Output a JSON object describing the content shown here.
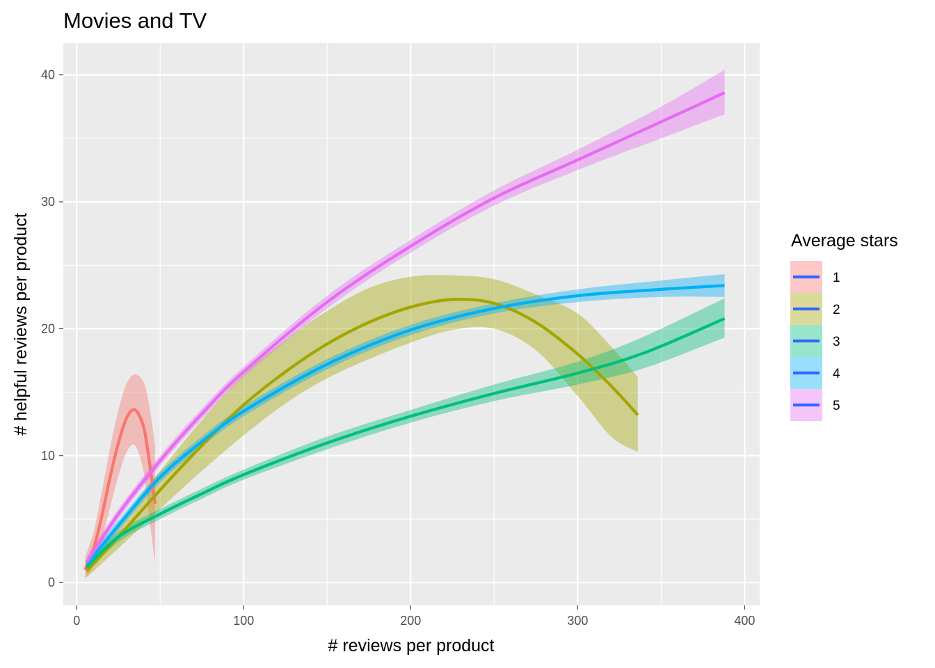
{
  "chart_data": {
    "type": "line",
    "title": "Movies and TV",
    "xlabel": "# reviews per product",
    "ylabel": "# helpful reviews per product",
    "xlim": [
      -8,
      409
    ],
    "ylim": [
      -1.8,
      42.5
    ],
    "x_ticks": [
      0,
      100,
      200,
      300,
      400
    ],
    "y_ticks": [
      0,
      10,
      20,
      30,
      40
    ],
    "grid": true,
    "legend": {
      "title": "Average stars",
      "placement": "right",
      "items": [
        "1",
        "2",
        "3",
        "4",
        "5"
      ]
    },
    "series": [
      {
        "name": "1",
        "color": "#F8766D",
        "points": [
          {
            "x": 5,
            "y": 1.0,
            "lo": 0.3,
            "hi": 2.0
          },
          {
            "x": 10,
            "y": 2.6,
            "lo": 1.3,
            "hi": 3.9
          },
          {
            "x": 15,
            "y": 5.2,
            "lo": 3.3,
            "hi": 7.1
          },
          {
            "x": 20,
            "y": 8.3,
            "lo": 5.9,
            "hi": 10.6
          },
          {
            "x": 25,
            "y": 11.0,
            "lo": 8.4,
            "hi": 13.6
          },
          {
            "x": 30,
            "y": 13.0,
            "lo": 10.3,
            "hi": 15.7
          },
          {
            "x": 35,
            "y": 13.6,
            "lo": 10.8,
            "hi": 16.4
          },
          {
            "x": 40,
            "y": 12.3,
            "lo": 8.8,
            "hi": 15.8
          },
          {
            "x": 43,
            "y": 10.0,
            "lo": 5.6,
            "hi": 14.3
          },
          {
            "x": 47,
            "y": 6.2,
            "lo": 1.5,
            "hi": 10.8
          }
        ]
      },
      {
        "name": "2",
        "color": "#A3A500",
        "points": [
          {
            "x": 6,
            "y": 0.9,
            "lo": 0.4,
            "hi": 1.4
          },
          {
            "x": 25,
            "y": 3.6,
            "lo": 2.7,
            "hi": 4.6
          },
          {
            "x": 50,
            "y": 7.3,
            "lo": 5.8,
            "hi": 8.8
          },
          {
            "x": 75,
            "y": 10.8,
            "lo": 8.8,
            "hi": 12.8
          },
          {
            "x": 100,
            "y": 14.0,
            "lo": 11.6,
            "hi": 16.4
          },
          {
            "x": 125,
            "y": 16.6,
            "lo": 14.1,
            "hi": 19.1
          },
          {
            "x": 150,
            "y": 18.8,
            "lo": 16.1,
            "hi": 21.4
          },
          {
            "x": 175,
            "y": 20.5,
            "lo": 17.6,
            "hi": 23.2
          },
          {
            "x": 200,
            "y": 21.7,
            "lo": 18.9,
            "hi": 24.1
          },
          {
            "x": 225,
            "y": 22.3,
            "lo": 19.9,
            "hi": 24.2
          },
          {
            "x": 250,
            "y": 22.0,
            "lo": 20.0,
            "hi": 23.9
          },
          {
            "x": 275,
            "y": 20.5,
            "lo": 18.3,
            "hi": 22.7
          },
          {
            "x": 300,
            "y": 18.0,
            "lo": 14.7,
            "hi": 21.2
          },
          {
            "x": 320,
            "y": 15.5,
            "lo": 11.5,
            "hi": 18.6
          },
          {
            "x": 336,
            "y": 13.2,
            "lo": 10.3,
            "hi": 16.2
          }
        ]
      },
      {
        "name": "3",
        "color": "#00BF7D",
        "points": [
          {
            "x": 6,
            "y": 1.2,
            "lo": 0.8,
            "hi": 1.6
          },
          {
            "x": 25,
            "y": 3.6,
            "lo": 3.2,
            "hi": 4.0
          },
          {
            "x": 50,
            "y": 5.4,
            "lo": 5.0,
            "hi": 5.8
          },
          {
            "x": 75,
            "y": 7.0,
            "lo": 6.6,
            "hi": 7.4
          },
          {
            "x": 100,
            "y": 8.5,
            "lo": 8.1,
            "hi": 8.9
          },
          {
            "x": 150,
            "y": 11.0,
            "lo": 10.5,
            "hi": 11.5
          },
          {
            "x": 200,
            "y": 13.1,
            "lo": 12.6,
            "hi": 13.6
          },
          {
            "x": 250,
            "y": 14.9,
            "lo": 14.3,
            "hi": 15.6
          },
          {
            "x": 300,
            "y": 16.5,
            "lo": 15.6,
            "hi": 17.4
          },
          {
            "x": 340,
            "y": 18.1,
            "lo": 16.9,
            "hi": 19.4
          },
          {
            "x": 388,
            "y": 20.8,
            "lo": 19.3,
            "hi": 22.4
          }
        ]
      },
      {
        "name": "4",
        "color": "#00B0F6",
        "points": [
          {
            "x": 6,
            "y": 1.4,
            "lo": 1.0,
            "hi": 1.8
          },
          {
            "x": 25,
            "y": 4.5,
            "lo": 4.1,
            "hi": 4.9
          },
          {
            "x": 50,
            "y": 8.3,
            "lo": 7.9,
            "hi": 8.7
          },
          {
            "x": 75,
            "y": 11.1,
            "lo": 10.7,
            "hi": 11.5
          },
          {
            "x": 100,
            "y": 13.5,
            "lo": 13.1,
            "hi": 13.9
          },
          {
            "x": 150,
            "y": 17.2,
            "lo": 16.8,
            "hi": 17.6
          },
          {
            "x": 200,
            "y": 19.9,
            "lo": 19.5,
            "hi": 20.3
          },
          {
            "x": 250,
            "y": 21.6,
            "lo": 21.2,
            "hi": 22.0
          },
          {
            "x": 300,
            "y": 22.6,
            "lo": 22.1,
            "hi": 23.1
          },
          {
            "x": 350,
            "y": 23.1,
            "lo": 22.5,
            "hi": 23.8
          },
          {
            "x": 388,
            "y": 23.4,
            "lo": 22.5,
            "hi": 24.3
          }
        ]
      },
      {
        "name": "5",
        "color": "#E76BF3",
        "points": [
          {
            "x": 6,
            "y": 1.6,
            "lo": 1.2,
            "hi": 2.0
          },
          {
            "x": 25,
            "y": 5.4,
            "lo": 5.0,
            "hi": 5.8
          },
          {
            "x": 50,
            "y": 9.6,
            "lo": 9.2,
            "hi": 10.0
          },
          {
            "x": 75,
            "y": 13.3,
            "lo": 12.9,
            "hi": 13.7
          },
          {
            "x": 100,
            "y": 16.6,
            "lo": 16.2,
            "hi": 17.0
          },
          {
            "x": 150,
            "y": 22.1,
            "lo": 21.6,
            "hi": 22.6
          },
          {
            "x": 200,
            "y": 26.5,
            "lo": 26.0,
            "hi": 27.0
          },
          {
            "x": 250,
            "y": 30.3,
            "lo": 29.7,
            "hi": 30.9
          },
          {
            "x": 300,
            "y": 33.3,
            "lo": 32.5,
            "hi": 34.1
          },
          {
            "x": 350,
            "y": 36.3,
            "lo": 35.0,
            "hi": 37.5
          },
          {
            "x": 388,
            "y": 38.6,
            "lo": 36.9,
            "hi": 40.4
          }
        ]
      }
    ]
  }
}
